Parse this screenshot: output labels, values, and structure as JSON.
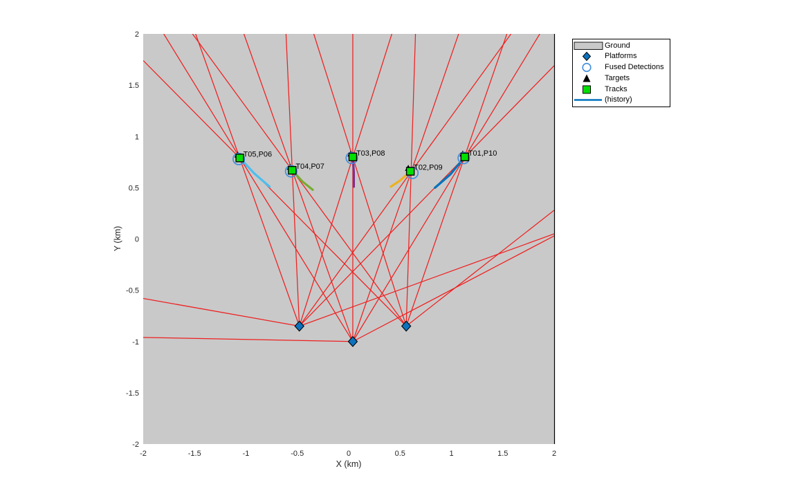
{
  "figure": {
    "background": "#ffffff"
  },
  "colors": {
    "ground": "#c9c9c9",
    "detection_ray": "#f01e1e",
    "platform": "#0d72bd",
    "fused_detection": "#3e8ede",
    "track_fill": "#00df00",
    "target": "#000000",
    "axis_text": "#262626",
    "spine": "#000000"
  },
  "legend": {
    "items": [
      {
        "label": "Ground",
        "marker": "patch",
        "color": "#c9c9c9"
      },
      {
        "label": "Platforms",
        "marker": "diamond",
        "color": "#0d72bd"
      },
      {
        "label": "Fused Detections",
        "marker": "circle",
        "color": "#3e8ede"
      },
      {
        "label": "Targets",
        "marker": "triangle",
        "color": "#000000"
      },
      {
        "label": "Tracks",
        "marker": "square",
        "color": "#00df00"
      },
      {
        "label": "(history)",
        "marker": "line",
        "color": "#0072bd"
      }
    ]
  },
  "chart_data": {
    "type": "scatter",
    "title": "",
    "xlabel": "X (km)",
    "ylabel": "Y (km)",
    "xlim": [
      -2,
      2
    ],
    "ylim": [
      -2,
      2
    ],
    "grid": false,
    "legend_position": "outside-northeast",
    "xticks": [
      -2,
      -1.5,
      -1,
      -0.5,
      0,
      0.5,
      1,
      1.5,
      2
    ],
    "yticks": [
      -2,
      -1.5,
      -1,
      -0.5,
      0,
      0.5,
      1,
      1.5,
      2
    ],
    "xtick_labels": [
      "-2",
      "-1.5",
      "-1",
      "-0.5",
      "0",
      "0.5",
      "1",
      "1.5",
      "2"
    ],
    "ytick_labels": [
      "-2",
      "-1.5",
      "-1",
      "-0.5",
      "0",
      "0.5",
      "1",
      "1.5",
      "2"
    ],
    "platforms": [
      {
        "pos": [
          -0.48,
          -0.85
        ]
      },
      {
        "pos": [
          0.04,
          -1.0
        ]
      },
      {
        "pos": [
          0.56,
          -0.85
        ]
      }
    ],
    "tracks": [
      {
        "label": "T01,P10",
        "pos": [
          1.13,
          0.8
        ],
        "color": "#0072bd",
        "history": [
          [
            1.13,
            0.8
          ],
          [
            0.99,
            0.63
          ],
          [
            0.84,
            0.5
          ]
        ]
      },
      {
        "label": "T02,P09",
        "pos": [
          0.6,
          0.66
        ],
        "color": "#edb120",
        "history": [
          [
            0.6,
            0.66
          ],
          [
            0.5,
            0.57
          ],
          [
            0.41,
            0.51
          ]
        ]
      },
      {
        "label": "T03,P08",
        "pos": [
          0.04,
          0.8
        ],
        "color": "#7e2f8e",
        "history": [
          [
            0.04,
            0.8
          ],
          [
            0.05,
            0.65
          ],
          [
            0.05,
            0.51
          ]
        ]
      },
      {
        "label": "T04,P07",
        "pos": [
          -0.55,
          0.67
        ],
        "color": "#77ac30",
        "history": [
          [
            -0.55,
            0.67
          ],
          [
            -0.45,
            0.56
          ],
          [
            -0.35,
            0.48
          ]
        ]
      },
      {
        "label": "T05,P06",
        "pos": [
          -1.06,
          0.79
        ],
        "color": "#4dbeee",
        "history": [
          [
            -1.06,
            0.79
          ],
          [
            -0.92,
            0.64
          ],
          [
            -0.77,
            0.51
          ]
        ]
      }
    ],
    "fused_detections": [
      {
        "pos": [
          1.12,
          0.79
        ]
      },
      {
        "pos": [
          0.62,
          0.645
        ]
      },
      {
        "pos": [
          0.03,
          0.79
        ]
      },
      {
        "pos": [
          -0.56,
          0.66
        ]
      },
      {
        "pos": [
          -1.07,
          0.78
        ]
      }
    ],
    "targets": [
      {
        "pos": [
          1.11,
          0.83
        ]
      },
      {
        "pos": [
          0.58,
          0.69
        ]
      },
      {
        "pos": [
          0.02,
          0.83
        ]
      },
      {
        "pos": [
          -0.57,
          0.7
        ]
      },
      {
        "pos": [
          -1.08,
          0.82
        ]
      }
    ],
    "detection_rays": [
      {
        "from": [
          -0.48,
          -0.85
        ],
        "to": [
          -1.49,
          2
        ]
      },
      {
        "from": [
          -0.48,
          -0.85
        ],
        "to": [
          -0.61,
          2
        ]
      },
      {
        "from": [
          -0.48,
          -0.85
        ],
        "to": [
          0.42,
          2
        ]
      },
      {
        "from": [
          -0.48,
          -0.85
        ],
        "to": [
          1.58,
          2
        ]
      },
      {
        "from": [
          -0.48,
          -0.85
        ],
        "to": [
          2,
          1.69
        ]
      },
      {
        "from": [
          -0.48,
          -0.85
        ],
        "to": [
          -2,
          -0.58
        ]
      },
      {
        "from": [
          -0.48,
          -0.85
        ],
        "to": [
          2,
          0.05
        ]
      },
      {
        "from": [
          0.04,
          -1.0
        ],
        "to": [
          -1.8,
          2
        ]
      },
      {
        "from": [
          0.04,
          -1.0
        ],
        "to": [
          -1.02,
          2
        ]
      },
      {
        "from": [
          0.04,
          -1.0
        ],
        "to": [
          0.04,
          2
        ]
      },
      {
        "from": [
          0.04,
          -1.0
        ],
        "to": [
          1.07,
          2
        ]
      },
      {
        "from": [
          0.04,
          -1.0
        ],
        "to": [
          1.86,
          2
        ]
      },
      {
        "from": [
          0.04,
          -1.0
        ],
        "to": [
          -2,
          -0.96
        ]
      },
      {
        "from": [
          0.04,
          -1.0
        ],
        "to": [
          2,
          0.03
        ]
      },
      {
        "from": [
          0.56,
          -0.85
        ],
        "to": [
          -2,
          1.74
        ]
      },
      {
        "from": [
          0.56,
          -0.85
        ],
        "to": [
          -1.52,
          2
        ]
      },
      {
        "from": [
          0.56,
          -0.85
        ],
        "to": [
          -0.34,
          2
        ]
      },
      {
        "from": [
          0.56,
          -0.85
        ],
        "to": [
          0.65,
          2
        ]
      },
      {
        "from": [
          0.56,
          -0.85
        ],
        "to": [
          1.54,
          2
        ]
      },
      {
        "from": [
          0.56,
          -0.85
        ],
        "to": [
          2,
          0.28
        ]
      }
    ]
  }
}
